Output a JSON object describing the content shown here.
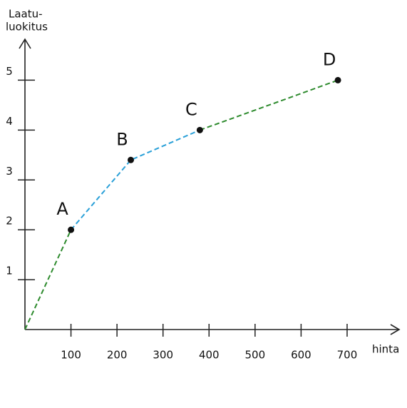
{
  "chart_data": {
    "type": "line",
    "y_label_lines": [
      "Laatu-",
      "luokitus"
    ],
    "x_label": "hinta",
    "xlim": [
      0,
      810
    ],
    "ylim": [
      0,
      5.75
    ],
    "xticks": [
      100,
      200,
      300,
      400,
      500,
      600,
      700
    ],
    "yticks": [
      1,
      2,
      3,
      4,
      5
    ],
    "series": [
      {
        "color": "#2e8b2e",
        "x": [
          0,
          100
        ],
        "values": [
          0,
          2
        ]
      },
      {
        "color": "#2aa0d8",
        "x": [
          100,
          230,
          380
        ],
        "values": [
          2,
          3.4,
          4
        ]
      },
      {
        "color": "#2e8b2e",
        "x": [
          380,
          680
        ],
        "values": [
          4,
          5
        ]
      }
    ],
    "points": [
      {
        "label": "A",
        "x": 100,
        "y": 2
      },
      {
        "label": "B",
        "x": 230,
        "y": 3.4
      },
      {
        "label": "C",
        "x": 380,
        "y": 4
      },
      {
        "label": "D",
        "x": 680,
        "y": 5
      }
    ]
  }
}
